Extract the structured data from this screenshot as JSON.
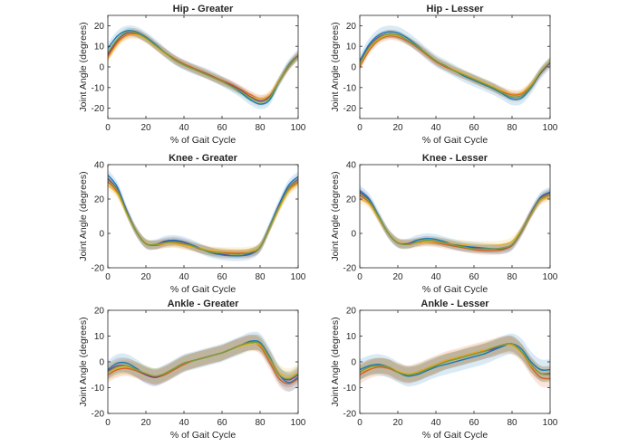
{
  "colors": {
    "series": [
      "#0072BD",
      "#D95319",
      "#EDB120",
      "#7E2F8E",
      "#77AC30"
    ],
    "axis": "#262626"
  },
  "chart_data": [
    {
      "type": "line",
      "title": "Hip - Greater",
      "xlabel": "% of Gait Cycle",
      "ylabel": "Joint Angle (degrees)",
      "xlim": [
        0,
        100
      ],
      "ylim": [
        -25,
        25
      ],
      "xticks": [
        0,
        20,
        40,
        60,
        80,
        100
      ],
      "yticks": [
        -20,
        -10,
        0,
        10,
        20
      ],
      "x": [
        0,
        5,
        10,
        15,
        20,
        25,
        30,
        35,
        40,
        45,
        50,
        55,
        60,
        65,
        70,
        75,
        80,
        85,
        90,
        95,
        100
      ],
      "series": [
        {
          "values": [
            9,
            15,
            17.5,
            17,
            14.5,
            11,
            7,
            3.5,
            1,
            -1,
            -2.5,
            -4.5,
            -7,
            -9.5,
            -12.5,
            -16,
            -18,
            -16,
            -7,
            1,
            6
          ],
          "band": 2.5
        },
        {
          "values": [
            5,
            12,
            15.5,
            16,
            14,
            10.5,
            7,
            4,
            1.5,
            -0.5,
            -2.5,
            -4.5,
            -6.5,
            -8.5,
            -11,
            -13.5,
            -15.5,
            -14,
            -7,
            0,
            5.5
          ],
          "band": 2
        },
        {
          "values": [
            4,
            11,
            15,
            15.5,
            13.5,
            10,
            6.5,
            3.5,
            1,
            -1,
            -3,
            -5,
            -7,
            -9,
            -11.5,
            -14,
            -15.5,
            -13.5,
            -6.5,
            0.5,
            6
          ],
          "band": 2
        },
        {
          "values": [
            6,
            13,
            16.5,
            16.5,
            14,
            10.5,
            7,
            3.5,
            1,
            -1,
            -3,
            -5,
            -7,
            -9,
            -11.5,
            -14.5,
            -16.5,
            -14.5,
            -7,
            0.5,
            5.5
          ],
          "band": 2
        },
        {
          "values": [
            7,
            13.5,
            17,
            16.5,
            14,
            10.5,
            7,
            3.5,
            1,
            -1,
            -3,
            -5,
            -7,
            -9.5,
            -12,
            -15,
            -17,
            -15,
            -7,
            0.5,
            5
          ],
          "band": 2
        }
      ]
    },
    {
      "type": "line",
      "title": "Hip - Lesser",
      "xlabel": "% of Gait Cycle",
      "ylabel": "Joint Angle (degrees)",
      "xlim": [
        0,
        100
      ],
      "ylim": [
        -25,
        25
      ],
      "xticks": [
        0,
        20,
        40,
        60,
        80,
        100
      ],
      "yticks": [
        -20,
        -10,
        0,
        10,
        20
      ],
      "x": [
        0,
        5,
        10,
        15,
        20,
        25,
        30,
        35,
        40,
        45,
        50,
        55,
        60,
        65,
        70,
        75,
        80,
        85,
        90,
        95,
        100
      ],
      "series": [
        {
          "values": [
            3,
            11,
            15.5,
            17,
            16.5,
            14,
            10.5,
            6.5,
            3,
            0.5,
            -2,
            -4.5,
            -6.5,
            -8.5,
            -10.5,
            -13,
            -15.5,
            -15,
            -10,
            -3,
            2
          ],
          "band": 3
        },
        {
          "values": [
            0,
            8,
            13,
            15,
            14.5,
            12.5,
            9.5,
            6,
            2.5,
            0,
            -2,
            -4,
            -6,
            -8,
            -10,
            -12,
            -13.5,
            -13,
            -9,
            -2.5,
            2.5
          ],
          "band": 2
        },
        {
          "values": [
            1,
            9,
            13.5,
            15.5,
            15,
            13,
            10,
            6.5,
            3,
            0.5,
            -1.5,
            -3.5,
            -5.5,
            -7.5,
            -9.5,
            -11.5,
            -13,
            -12.5,
            -8.5,
            -2.5,
            2.5
          ],
          "band": 2
        },
        {
          "values": [
            2,
            10,
            14.5,
            16,
            15.5,
            13,
            10,
            6.5,
            3,
            0.5,
            -2,
            -4,
            -6,
            -8,
            -10,
            -12.5,
            -14.5,
            -14,
            -9.5,
            -3,
            2
          ],
          "band": 2
        },
        {
          "values": [
            1.5,
            9.5,
            14,
            16,
            15.5,
            13,
            10,
            6.5,
            3,
            0.5,
            -2,
            -4,
            -6,
            -8,
            -10,
            -12.5,
            -14.5,
            -14,
            -9.5,
            -2.5,
            2.5
          ],
          "band": 2
        }
      ]
    },
    {
      "type": "line",
      "title": "Knee - Greater",
      "xlabel": "% of Gait Cycle",
      "ylabel": "Joint Angle (degrees)",
      "xlim": [
        0,
        100
      ],
      "ylim": [
        -20,
        40
      ],
      "xticks": [
        0,
        20,
        40,
        60,
        80,
        100
      ],
      "yticks": [
        -20,
        0,
        20,
        40
      ],
      "x": [
        0,
        5,
        10,
        15,
        20,
        25,
        30,
        35,
        40,
        45,
        50,
        55,
        60,
        65,
        70,
        75,
        80,
        85,
        90,
        95,
        100
      ],
      "series": [
        {
          "values": [
            34,
            27,
            13,
            1,
            -6,
            -6.5,
            -4.5,
            -4,
            -5,
            -7,
            -9.5,
            -11.5,
            -12.5,
            -13,
            -13,
            -12,
            -8,
            4,
            17,
            28,
            33
          ],
          "band": 3
        },
        {
          "values": [
            30,
            24,
            12,
            1,
            -6,
            -7,
            -6,
            -5.5,
            -6.5,
            -8,
            -9.5,
            -10.5,
            -11,
            -11.5,
            -11.5,
            -11,
            -8,
            3,
            15,
            25,
            30
          ],
          "band": 2.5
        },
        {
          "values": [
            28,
            23,
            11.5,
            1,
            -5.5,
            -6.5,
            -6,
            -6,
            -7,
            -8,
            -9,
            -10,
            -10.5,
            -10.5,
            -10.5,
            -10,
            -7.5,
            3,
            14.5,
            24.5,
            29
          ],
          "band": 2.5
        },
        {
          "values": [
            32,
            25.5,
            12.5,
            1,
            -6,
            -6.5,
            -5,
            -4.5,
            -5.5,
            -7.5,
            -9.5,
            -11,
            -12,
            -12,
            -12,
            -11.5,
            -8,
            3.5,
            16,
            26.5,
            31.5
          ],
          "band": 2.5
        },
        {
          "values": [
            31,
            25,
            12,
            1,
            -6,
            -6.5,
            -5.5,
            -5,
            -6,
            -7.5,
            -9.5,
            -11,
            -11.5,
            -12,
            -12,
            -11,
            -8,
            3.5,
            15.5,
            26,
            31
          ],
          "band": 2.5
        }
      ]
    },
    {
      "type": "line",
      "title": "Knee - Lesser",
      "xlabel": "% of Gait Cycle",
      "ylabel": "Joint Angle (degrees)",
      "xlim": [
        0,
        100
      ],
      "ylim": [
        -20,
        40
      ],
      "xticks": [
        0,
        20,
        40,
        60,
        80,
        100
      ],
      "yticks": [
        -20,
        0,
        20,
        40
      ],
      "x": [
        0,
        5,
        10,
        15,
        20,
        25,
        30,
        35,
        40,
        45,
        50,
        55,
        60,
        65,
        70,
        75,
        80,
        85,
        90,
        95,
        100
      ],
      "series": [
        {
          "values": [
            25,
            20,
            10,
            0,
            -5.5,
            -6,
            -4,
            -3,
            -3.5,
            -5,
            -6.5,
            -7.5,
            -8,
            -8.5,
            -9,
            -9,
            -7,
            1,
            12,
            21,
            24
          ],
          "band": 3
        },
        {
          "values": [
            22,
            18,
            9,
            0,
            -5.5,
            -6.5,
            -5.5,
            -5,
            -5.5,
            -6.5,
            -7.5,
            -8.5,
            -9.5,
            -10,
            -10,
            -9.5,
            -7,
            1,
            11,
            19.5,
            22.5
          ],
          "band": 2.5
        },
        {
          "values": [
            20,
            17,
            8.5,
            0,
            -5,
            -6,
            -5.5,
            -5,
            -5,
            -5.5,
            -6,
            -6.5,
            -7,
            -7,
            -7,
            -6.5,
            -4.5,
            2,
            11.5,
            19,
            21
          ],
          "band": 2.5
        },
        {
          "values": [
            24,
            19,
            9.5,
            0,
            -5.5,
            -6,
            -5,
            -4,
            -4.5,
            -5.5,
            -7,
            -8,
            -8.5,
            -9,
            -9,
            -8.5,
            -6.5,
            1.5,
            12,
            20.5,
            23.5
          ],
          "band": 2.5
        },
        {
          "values": [
            23,
            18.5,
            9.5,
            0,
            -5.5,
            -6.5,
            -5,
            -4,
            -4.5,
            -5.5,
            -7,
            -8,
            -9,
            -9,
            -9,
            -8.5,
            -6.5,
            1.5,
            11.5,
            20,
            23
          ],
          "band": 2.5
        }
      ]
    },
    {
      "type": "line",
      "title": "Ankle - Greater",
      "xlabel": "% of Gait Cycle",
      "ylabel": "Joint Angle (degrees)",
      "xlim": [
        0,
        100
      ],
      "ylim": [
        -20,
        20
      ],
      "xticks": [
        0,
        20,
        40,
        60,
        80,
        100
      ],
      "yticks": [
        -20,
        -10,
        0,
        10,
        20
      ],
      "x": [
        0,
        5,
        10,
        15,
        20,
        25,
        30,
        35,
        40,
        45,
        50,
        55,
        60,
        65,
        70,
        75,
        80,
        85,
        90,
        95,
        100
      ],
      "series": [
        {
          "values": [
            -3,
            -0.5,
            -0.5,
            -2.5,
            -5,
            -6,
            -4.5,
            -2.5,
            -0.5,
            0.5,
            1.5,
            2.5,
            3.5,
            5,
            6.5,
            8,
            7.5,
            2,
            -5,
            -8,
            -6
          ],
          "band": 3.5
        },
        {
          "values": [
            -5,
            -3,
            -2.5,
            -3.5,
            -5,
            -6,
            -5,
            -3,
            -1,
            0.5,
            1.5,
            2.5,
            3.5,
            5,
            6.5,
            7.5,
            6,
            0,
            -6.5,
            -8.5,
            -6.5
          ],
          "band": 3
        },
        {
          "values": [
            -4,
            -2.5,
            -2,
            -3,
            -4.5,
            -5.5,
            -4.5,
            -2.5,
            -0.5,
            0.5,
            1.5,
            2.5,
            3.5,
            5,
            6,
            7,
            6.5,
            1.5,
            -4,
            -5.5,
            -4
          ],
          "band": 3
        },
        {
          "values": [
            -3.5,
            -1.5,
            -1.5,
            -3,
            -5,
            -6,
            -4.5,
            -2.5,
            -0.5,
            0.5,
            1.5,
            2.5,
            3.5,
            5,
            6.5,
            7.5,
            7,
            1.5,
            -5,
            -7,
            -5
          ],
          "band": 3
        },
        {
          "values": [
            -4,
            -2,
            -1.5,
            -3,
            -4.5,
            -5.5,
            -4.5,
            -2.5,
            -0.5,
            0.5,
            1.5,
            2.5,
            3.5,
            5,
            6.5,
            7.5,
            7,
            1.5,
            -5,
            -6.5,
            -4.5
          ],
          "band": 3
        }
      ]
    },
    {
      "type": "line",
      "title": "Ankle - Lesser",
      "xlabel": "% of Gait Cycle",
      "ylabel": "Joint Angle (degrees)",
      "xlim": [
        0,
        100
      ],
      "ylim": [
        -20,
        20
      ],
      "xticks": [
        0,
        20,
        40,
        60,
        80,
        100
      ],
      "yticks": [
        -20,
        -10,
        0,
        10,
        20
      ],
      "x": [
        0,
        5,
        10,
        15,
        20,
        25,
        30,
        35,
        40,
        45,
        50,
        55,
        60,
        65,
        70,
        75,
        80,
        85,
        90,
        95,
        100
      ],
      "series": [
        {
          "values": [
            -3,
            -1.5,
            -1,
            -2,
            -4,
            -5.5,
            -5,
            -3.5,
            -2,
            -1,
            0,
            1,
            2,
            3,
            4.5,
            6,
            7,
            5,
            0,
            -3,
            -3
          ],
          "band": 4
        },
        {
          "values": [
            -5,
            -3,
            -2,
            -2.5,
            -4,
            -5,
            -4,
            -2.5,
            -1,
            0.5,
            1.5,
            2.5,
            3.5,
            4.5,
            5.5,
            6.5,
            6.5,
            3.5,
            -2,
            -6,
            -6.5
          ],
          "band": 3.5
        },
        {
          "values": [
            -4,
            -2.5,
            -1.5,
            -2,
            -3.5,
            -4.5,
            -4,
            -2.5,
            -1,
            0.5,
            1.5,
            2.5,
            3.5,
            4.5,
            5.5,
            6.5,
            6.5,
            3.5,
            -1.5,
            -4.5,
            -4.5
          ],
          "band": 3
        },
        {
          "values": [
            -4,
            -2,
            -1.5,
            -2,
            -4,
            -5,
            -4.5,
            -3,
            -1.5,
            0,
            1,
            2,
            3,
            4,
            5,
            6.5,
            7,
            4,
            -1,
            -4.5,
            -4.5
          ],
          "band": 3
        },
        {
          "values": [
            -4,
            -2,
            -1.5,
            -2,
            -4,
            -5,
            -4.5,
            -3,
            -1.5,
            0,
            1,
            2,
            3,
            4,
            5.5,
            6.5,
            7,
            4,
            -1,
            -4.5,
            -5
          ],
          "band": 3
        }
      ]
    }
  ]
}
